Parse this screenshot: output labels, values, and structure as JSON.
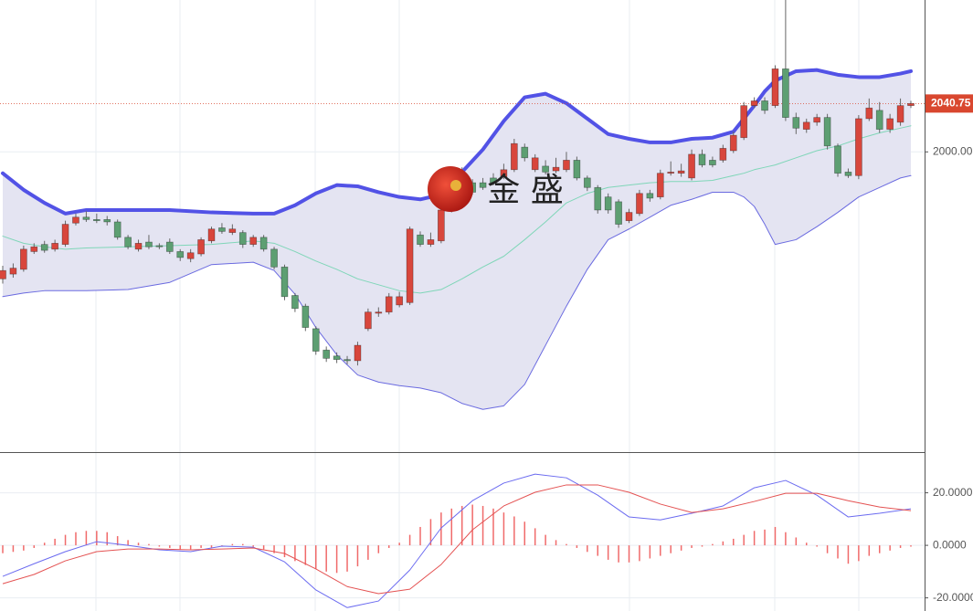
{
  "chart_data": [
    {
      "type": "candlestick",
      "up_color": "#d8463c",
      "down_color": "#5d9f72",
      "open": [
        1893,
        1897,
        1901,
        1916,
        1922,
        1918,
        1922,
        1940,
        1945,
        1943,
        1943,
        1941,
        1928,
        1918,
        1924,
        1921,
        1924,
        1916,
        1910,
        1914,
        1925,
        1936,
        1932,
        1932,
        1922,
        1928,
        1918,
        1903,
        1879,
        1870,
        1851,
        1833,
        1828,
        1825,
        1824,
        1851,
        1864,
        1865,
        1871,
        1873,
        1930,
        1922,
        1925,
        1951,
        1970,
        1974,
        1974,
        1978,
        1979,
        1985,
        2004,
        1985,
        1988,
        1984,
        1985,
        1993,
        1978,
        1970,
        1962,
        1958,
        1942,
        1948,
        1965,
        1962,
        1982,
        1982,
        1978,
        1998,
        1993,
        1993,
        2001,
        2012,
        2039,
        2043,
        2039,
        2070,
        2029,
        2019,
        2025,
        2029,
        2005,
        1983,
        1980,
        2028,
        2035,
        2019,
        2025,
        2039
      ],
      "high": [
        1904,
        1906,
        1921,
        1923,
        1925,
        1926,
        1942,
        1948,
        1950,
        1948,
        1946,
        1943,
        1930,
        1926,
        1930,
        1923,
        1927,
        1918,
        1918,
        1928,
        1937,
        1940,
        1939,
        1934,
        1930,
        1930,
        1920,
        1905,
        1881,
        1872,
        1853,
        1836,
        1831,
        1828,
        1840,
        1868,
        1869,
        1881,
        1882,
        1937,
        1933,
        1932,
        1953,
        1973,
        1987,
        1977,
        1978,
        1982,
        1990,
        2011,
        2007,
        1998,
        1993,
        1995,
        2000,
        1996,
        1980,
        1972,
        1965,
        1960,
        1952,
        1968,
        1968,
        1985,
        1992,
        1990,
        2002,
        2002,
        1996,
        2006,
        2017,
        2042,
        2046,
        2046,
        2073,
        2130,
        2033,
        2028,
        2032,
        2032,
        2007,
        1986,
        2031,
        2045,
        2042,
        2032,
        2045,
        2043
      ],
      "low": [
        1889,
        1894,
        1899,
        1914,
        1915,
        1916,
        1920,
        1938,
        1941,
        1940,
        1938,
        1926,
        1918,
        1916,
        1918,
        1918,
        1914,
        1908,
        1907,
        1912,
        1923,
        1931,
        1930,
        1919,
        1920,
        1916,
        1901,
        1875,
        1865,
        1849,
        1829,
        1823,
        1822,
        1821,
        1820,
        1849,
        1861,
        1863,
        1869,
        1871,
        1920,
        1920,
        1923,
        1949,
        1968,
        1964,
        1968,
        1972,
        1977,
        1983,
        1992,
        1983,
        1981,
        1982,
        1983,
        1976,
        1967,
        1948,
        1948,
        1936,
        1940,
        1946,
        1958,
        1960,
        1980,
        1979,
        1976,
        1987,
        1987,
        1991,
        1999,
        2010,
        2037,
        2032,
        2037,
        2026,
        2015,
        2016,
        2022,
        2002,
        1979,
        1978,
        1977,
        2026,
        2016,
        2016,
        2022,
        2037
      ],
      "close": [
        1900,
        1902,
        1918,
        1920,
        1917,
        1923,
        1939,
        1945,
        1943,
        1942,
        1941,
        1928,
        1920,
        1923,
        1920,
        1920,
        1916,
        1911,
        1915,
        1926,
        1935,
        1933,
        1935,
        1922,
        1928,
        1918,
        1903,
        1878,
        1868,
        1852,
        1832,
        1826,
        1825,
        1824,
        1837,
        1865,
        1865,
        1878,
        1878,
        1935,
        1922,
        1926,
        1951,
        1970,
        1978,
        1966,
        1970,
        1974,
        1985,
        2007,
        1995,
        1995,
        1983,
        1987,
        1993,
        1978,
        1970,
        1951,
        1951,
        1939,
        1949,
        1965,
        1961,
        1982,
        1983,
        1984,
        1998,
        1989,
        1989,
        2003,
        2014,
        2039,
        2043,
        2035,
        2070,
        2029,
        2020,
        2025,
        2029,
        2005,
        1982,
        1980,
        2028,
        2037,
        2019,
        2028,
        2039,
        2040.75
      ],
      "band_x": [
        0,
        2,
        4,
        6,
        8,
        12,
        16,
        20,
        24,
        26,
        28,
        30,
        32,
        34,
        36,
        38,
        40,
        42,
        44,
        46,
        48,
        50,
        52,
        54,
        56,
        58,
        60,
        62,
        64,
        66,
        68,
        70,
        71,
        72,
        73,
        74,
        76,
        78,
        80,
        82,
        84,
        86,
        87
      ],
      "band_fill": "#e4e4f2",
      "series": [
        {
          "color": "#5252e6",
          "width": 4,
          "values": [
            1982,
            1968,
            1957,
            1948,
            1951,
            1951,
            1951,
            1949,
            1948,
            1948,
            1955,
            1965,
            1972,
            1971,
            1966,
            1962,
            1960,
            1964,
            1983,
            2002,
            2026,
            2046,
            2049,
            2041,
            2028,
            2015,
            2011,
            2008,
            2008,
            2011,
            2012,
            2017,
            2028,
            2039,
            2051,
            2060,
            2068,
            2069,
            2065,
            2063,
            2063,
            2066,
            2068
          ]
        },
        {
          "color": "#7fd6b8",
          "width": 1,
          "values": [
            1929,
            1923,
            1920,
            1918,
            1919,
            1920,
            1921,
            1922,
            1925,
            1923,
            1916,
            1908,
            1901,
            1893,
            1888,
            1883,
            1881,
            1884,
            1893,
            1903,
            1912,
            1926,
            1941,
            1957,
            1965,
            1970,
            1972,
            1974,
            1975,
            1975,
            1976,
            1980,
            1982,
            1985,
            1987,
            1989,
            1995,
            2001,
            2005,
            2011,
            2016,
            2020,
            2022
          ]
        },
        {
          "color": "#6a6ae0",
          "width": 1,
          "values": [
            1878,
            1881,
            1883,
            1883,
            1883,
            1884,
            1890,
            1905,
            1907,
            1900,
            1880,
            1852,
            1829,
            1812,
            1806,
            1803,
            1801,
            1797,
            1788,
            1783,
            1786,
            1804,
            1837,
            1870,
            1901,
            1926,
            1935,
            1945,
            1955,
            1960,
            1966,
            1966,
            1962,
            1954,
            1939,
            1922,
            1926,
            1937,
            1949,
            1962,
            1970,
            1978,
            1980
          ]
        }
      ],
      "last_price": 2040.75,
      "last_price_color": "#d9472f",
      "watermark": "金 盛",
      "ylim": [
        1747,
        2128
      ],
      "yticks": [
        {
          "value": 2000,
          "label": "2000.00"
        }
      ],
      "grid": true
    },
    {
      "type": "macd",
      "x": [
        0,
        3,
        6,
        9,
        12,
        15,
        18,
        21,
        24,
        27,
        30,
        33,
        36,
        39,
        42,
        45,
        48,
        51,
        54,
        57,
        60,
        63,
        66,
        69,
        72,
        75,
        78,
        81,
        84,
        87
      ],
      "series": [
        {
          "color": "#6b6bf0",
          "values": [
            -11.8,
            -7.0,
            -2.4,
            1.4,
            0,
            -1.7,
            -2.4,
            -0.3,
            -0.7,
            -6.3,
            -17.0,
            -23.7,
            -21.2,
            -9.4,
            6.6,
            17.0,
            23.7,
            27.1,
            25.7,
            19.1,
            10.8,
            9.7,
            12.2,
            15.0,
            21.9,
            24.7,
            19.1,
            10.8,
            12.2,
            13.9
          ]
        },
        {
          "color": "#e45252",
          "values": [
            -14.6,
            -11.1,
            -5.9,
            -2.4,
            -1.4,
            -1.4,
            -1.7,
            -1.4,
            -1.0,
            -3.1,
            -9.0,
            -15.7,
            -18.4,
            -16.7,
            -7.3,
            5.9,
            15.0,
            20.2,
            23.0,
            23.0,
            20.2,
            15.7,
            12.5,
            13.9,
            16.7,
            19.8,
            19.8,
            17.0,
            14.6,
            13.2
          ]
        }
      ],
      "histogram": {
        "color": "#f06a6a",
        "values": [
          -3,
          -2.5,
          -2,
          -1,
          1,
          2.5,
          4,
          5,
          5.5,
          5.5,
          5,
          3.5,
          2,
          1,
          0.5,
          -0.5,
          -1,
          -1.5,
          -1.5,
          -1,
          -1,
          -0.5,
          0.5,
          0.5,
          -0.5,
          -1.5,
          -3,
          -4.5,
          -6,
          -7.5,
          -9,
          -10,
          -10.5,
          -10,
          -8,
          -5.5,
          -3,
          -1,
          1,
          4,
          7,
          10,
          12.5,
          14,
          15,
          15.5,
          15,
          14,
          12.5,
          11,
          9,
          6.5,
          4,
          2,
          0.5,
          -1,
          -2.5,
          -4,
          -5.5,
          -6.5,
          -6.5,
          -6,
          -5,
          -4,
          -3,
          -2,
          -1,
          -0.5,
          0.5,
          1.5,
          2.5,
          4,
          5.5,
          6,
          7,
          5,
          3,
          1,
          -0.5,
          -3,
          -5,
          -7,
          -6,
          -4,
          -3,
          -2,
          -1,
          -0.5
        ]
      },
      "ylim": [
        -25,
        35.5
      ],
      "yticks": [
        {
          "value": 20,
          "label": "20.0000"
        },
        {
          "value": 0,
          "label": "0.0000"
        },
        {
          "value": -20,
          "label": "-20.0000"
        }
      ],
      "grid": true
    }
  ]
}
